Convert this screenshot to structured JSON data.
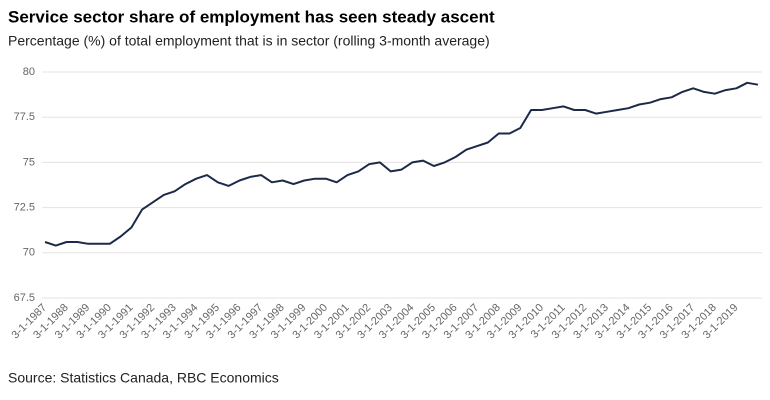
{
  "chart_data": {
    "type": "line",
    "title": "Service sector share of employment has seen steady ascent",
    "subtitle": "Percentage (%) of total employment that is in sector (rolling 3-month average)",
    "source": "Source: Statistics Canada, RBC Economics",
    "categories": [
      "3-1-1987",
      null,
      "3-1-1988",
      null,
      "3-1-1989",
      null,
      "3-1-1990",
      null,
      "3-1-1991",
      null,
      "3-1-1992",
      null,
      "3-1-1993",
      null,
      "3-1-1994",
      null,
      "3-1-1995",
      null,
      "3-1-1996",
      null,
      "3-1-1997",
      null,
      "3-1-1998",
      null,
      "3-1-1999",
      null,
      "3-1-2000",
      null,
      "3-1-2001",
      null,
      "3-1-2002",
      null,
      "3-1-2003",
      null,
      "3-1-2004",
      null,
      "3-1-2005",
      null,
      "3-1-2006",
      null,
      "3-1-2007",
      null,
      "3-1-2008",
      null,
      "3-1-2009",
      null,
      "3-1-2010",
      null,
      "3-1-2011",
      null,
      "3-1-2012",
      null,
      "3-1-2013",
      null,
      "3-1-2014",
      null,
      "3-1-2015",
      null,
      "3-1-2016",
      null,
      "3-1-2017",
      null,
      "3-1-2018",
      null,
      "3-1-2019",
      null,
      null
    ],
    "series": [
      {
        "name": "Service sector share",
        "color": "#1b2a48",
        "values": [
          70.6,
          70.4,
          70.6,
          70.6,
          70.5,
          70.5,
          70.5,
          70.9,
          71.4,
          72.4,
          72.8,
          73.2,
          73.4,
          73.8,
          74.1,
          74.3,
          73.9,
          73.7,
          74.0,
          74.2,
          74.3,
          73.9,
          74.0,
          73.8,
          74.0,
          74.1,
          74.1,
          73.9,
          74.3,
          74.5,
          74.9,
          75.0,
          74.5,
          74.6,
          75.0,
          75.1,
          74.8,
          75.0,
          75.3,
          75.7,
          75.9,
          76.1,
          76.6,
          76.6,
          76.9,
          77.9,
          77.9,
          78.0,
          78.1,
          77.9,
          77.9,
          77.7,
          77.8,
          77.9,
          78.0,
          78.2,
          78.3,
          78.5,
          78.6,
          78.9,
          79.1,
          78.9,
          78.8,
          79.0,
          79.1,
          79.4,
          79.3
        ]
      }
    ],
    "ylim": [
      67.5,
      80
    ],
    "yticks": [
      67.5,
      70,
      72.5,
      75,
      77.5,
      80
    ],
    "grid": true
  }
}
